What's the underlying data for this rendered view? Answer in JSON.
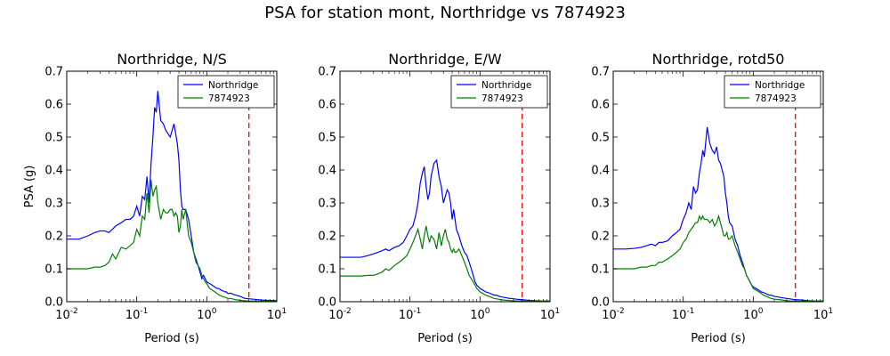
{
  "figure": {
    "title": "PSA for station mont, Northridge vs 7874923"
  },
  "colors": {
    "northridge": "#0000ff",
    "simulation": "#008000",
    "cutoff": "#ff0000"
  },
  "chart_data": [
    {
      "type": "line",
      "title": "Northridge, N/S",
      "xlabel": "Period (s)",
      "ylabel": "PSA (g)",
      "xscale": "log",
      "xlim": [
        0.01,
        10
      ],
      "ylim": [
        0,
        0.7
      ],
      "xticks": [
        "10",
        "10",
        "10",
        "10"
      ],
      "xtick_exponents": [
        "-2",
        "-1",
        "0",
        "1"
      ],
      "yticks": [
        "0.0",
        "0.1",
        "0.2",
        "0.3",
        "0.4",
        "0.5",
        "0.6",
        "0.7"
      ],
      "legend_position": "top-right",
      "cutoff_period": 4.0,
      "x": [
        0.01,
        0.015,
        0.02,
        0.025,
        0.03,
        0.035,
        0.04,
        0.045,
        0.05,
        0.06,
        0.07,
        0.08,
        0.09,
        0.1,
        0.11,
        0.12,
        0.13,
        0.14,
        0.15,
        0.16,
        0.17,
        0.18,
        0.19,
        0.2,
        0.22,
        0.24,
        0.26,
        0.28,
        0.3,
        0.32,
        0.34,
        0.36,
        0.38,
        0.4,
        0.42,
        0.44,
        0.46,
        0.5,
        0.55,
        0.6,
        0.65,
        0.7,
        0.75,
        0.8,
        0.85,
        0.9,
        0.95,
        1.0,
        1.1,
        1.2,
        1.3,
        1.4,
        1.5,
        1.6,
        1.7,
        1.8,
        1.9,
        2.0,
        2.2,
        2.4,
        2.6,
        2.8,
        3.0,
        3.5,
        4.0,
        5.0,
        6.0,
        7.5,
        10.0
      ],
      "series": [
        {
          "name": "Northridge",
          "values": [
            0.19,
            0.19,
            0.2,
            0.21,
            0.215,
            0.215,
            0.21,
            0.22,
            0.23,
            0.24,
            0.25,
            0.25,
            0.26,
            0.29,
            0.26,
            0.32,
            0.31,
            0.38,
            0.3,
            0.42,
            0.5,
            0.59,
            0.575,
            0.64,
            0.55,
            0.54,
            0.52,
            0.51,
            0.5,
            0.52,
            0.54,
            0.51,
            0.48,
            0.43,
            0.34,
            0.29,
            0.28,
            0.28,
            0.25,
            0.2,
            0.15,
            0.13,
            0.11,
            0.09,
            0.07,
            0.08,
            0.07,
            0.06,
            0.055,
            0.05,
            0.045,
            0.04,
            0.04,
            0.035,
            0.033,
            0.03,
            0.03,
            0.025,
            0.026,
            0.022,
            0.02,
            0.018,
            0.016,
            0.01,
            0.009,
            0.007,
            0.005,
            0.004,
            0.003
          ]
        },
        {
          "name": "7874923",
          "values": [
            0.1,
            0.1,
            0.1,
            0.105,
            0.105,
            0.11,
            0.12,
            0.145,
            0.13,
            0.165,
            0.16,
            0.17,
            0.18,
            0.22,
            0.2,
            0.26,
            0.25,
            0.33,
            0.27,
            0.37,
            0.32,
            0.34,
            0.35,
            0.3,
            0.25,
            0.28,
            0.27,
            0.27,
            0.28,
            0.28,
            0.26,
            0.27,
            0.26,
            0.21,
            0.23,
            0.28,
            0.25,
            0.28,
            0.2,
            0.18,
            0.15,
            0.12,
            0.11,
            0.1,
            0.08,
            0.07,
            0.06,
            0.055,
            0.04,
            0.035,
            0.03,
            0.025,
            0.02,
            0.018,
            0.015,
            0.014,
            0.012,
            0.01,
            0.01,
            0.008,
            0.006,
            0.005,
            0.004,
            0.003,
            0.002,
            0.002,
            0.001,
            0.001,
            0.001
          ]
        }
      ]
    },
    {
      "type": "line",
      "title": "Northridge, E/W",
      "xlabel": "Period (s)",
      "ylabel": "",
      "xscale": "log",
      "xlim": [
        0.01,
        10
      ],
      "ylim": [
        0,
        0.7
      ],
      "xticks": [
        "10",
        "10",
        "10",
        "10"
      ],
      "xtick_exponents": [
        "-2",
        "-1",
        "0",
        "1"
      ],
      "yticks": [
        "0.0",
        "0.1",
        "0.2",
        "0.3",
        "0.4",
        "0.5",
        "0.6",
        "0.7"
      ],
      "legend_position": "top-right",
      "cutoff_period": 4.0,
      "x": [
        0.01,
        0.015,
        0.02,
        0.025,
        0.03,
        0.035,
        0.04,
        0.045,
        0.05,
        0.06,
        0.07,
        0.08,
        0.09,
        0.1,
        0.11,
        0.12,
        0.13,
        0.14,
        0.15,
        0.16,
        0.17,
        0.18,
        0.19,
        0.2,
        0.22,
        0.24,
        0.26,
        0.28,
        0.3,
        0.32,
        0.34,
        0.36,
        0.38,
        0.4,
        0.42,
        0.44,
        0.46,
        0.5,
        0.55,
        0.6,
        0.65,
        0.7,
        0.75,
        0.8,
        0.85,
        0.9,
        0.95,
        1.0,
        1.1,
        1.2,
        1.3,
        1.4,
        1.5,
        1.6,
        1.7,
        1.8,
        1.9,
        2.0,
        2.2,
        2.4,
        2.6,
        2.8,
        3.0,
        3.5,
        4.0,
        5.0,
        6.0,
        7.5,
        10.0
      ],
      "series": [
        {
          "name": "Northridge",
          "values": [
            0.135,
            0.135,
            0.135,
            0.14,
            0.145,
            0.15,
            0.155,
            0.16,
            0.155,
            0.165,
            0.17,
            0.18,
            0.2,
            0.22,
            0.23,
            0.26,
            0.3,
            0.36,
            0.39,
            0.41,
            0.35,
            0.31,
            0.33,
            0.38,
            0.42,
            0.43,
            0.38,
            0.35,
            0.3,
            0.32,
            0.34,
            0.33,
            0.3,
            0.25,
            0.28,
            0.25,
            0.22,
            0.2,
            0.17,
            0.15,
            0.14,
            0.12,
            0.1,
            0.08,
            0.06,
            0.05,
            0.045,
            0.04,
            0.035,
            0.03,
            0.028,
            0.025,
            0.022,
            0.02,
            0.02,
            0.018,
            0.016,
            0.015,
            0.013,
            0.012,
            0.01,
            0.01,
            0.009,
            0.007,
            0.006,
            0.004,
            0.003,
            0.002,
            0.002
          ]
        },
        {
          "name": "7874923",
          "values": [
            0.078,
            0.078,
            0.078,
            0.08,
            0.08,
            0.085,
            0.09,
            0.1,
            0.095,
            0.11,
            0.12,
            0.13,
            0.14,
            0.16,
            0.18,
            0.2,
            0.22,
            0.19,
            0.16,
            0.2,
            0.23,
            0.2,
            0.18,
            0.2,
            0.19,
            0.16,
            0.21,
            0.17,
            0.2,
            0.22,
            0.19,
            0.18,
            0.16,
            0.15,
            0.16,
            0.15,
            0.15,
            0.16,
            0.14,
            0.12,
            0.1,
            0.08,
            0.07,
            0.06,
            0.05,
            0.04,
            0.035,
            0.03,
            0.025,
            0.02,
            0.017,
            0.015,
            0.012,
            0.01,
            0.009,
            0.008,
            0.007,
            0.006,
            0.005,
            0.004,
            0.004,
            0.003,
            0.003,
            0.002,
            0.002,
            0.001,
            0.001,
            0.001,
            0.001
          ]
        }
      ]
    },
    {
      "type": "line",
      "title": "Northridge, rotd50",
      "xlabel": "Period (s)",
      "ylabel": "",
      "xscale": "log",
      "xlim": [
        0.01,
        10
      ],
      "ylim": [
        0,
        0.7
      ],
      "xticks": [
        "10",
        "10",
        "10",
        "10"
      ],
      "xtick_exponents": [
        "-2",
        "-1",
        "0",
        "1"
      ],
      "yticks": [
        "0.0",
        "0.1",
        "0.2",
        "0.3",
        "0.4",
        "0.5",
        "0.6",
        "0.7"
      ],
      "legend_position": "top-right",
      "cutoff_period": 4.0,
      "x": [
        0.01,
        0.015,
        0.02,
        0.025,
        0.03,
        0.035,
        0.04,
        0.045,
        0.05,
        0.06,
        0.07,
        0.08,
        0.09,
        0.1,
        0.11,
        0.12,
        0.13,
        0.14,
        0.15,
        0.16,
        0.17,
        0.18,
        0.19,
        0.2,
        0.22,
        0.24,
        0.26,
        0.28,
        0.3,
        0.32,
        0.34,
        0.36,
        0.38,
        0.4,
        0.42,
        0.44,
        0.46,
        0.5,
        0.55,
        0.6,
        0.65,
        0.7,
        0.75,
        0.8,
        0.85,
        0.9,
        0.95,
        1.0,
        1.1,
        1.2,
        1.3,
        1.4,
        1.5,
        1.6,
        1.7,
        1.8,
        1.9,
        2.0,
        2.2,
        2.4,
        2.6,
        2.8,
        3.0,
        3.5,
        4.0,
        5.0,
        6.0,
        7.5,
        10.0
      ],
      "series": [
        {
          "name": "Northridge",
          "values": [
            0.16,
            0.16,
            0.162,
            0.165,
            0.17,
            0.175,
            0.17,
            0.18,
            0.18,
            0.185,
            0.2,
            0.21,
            0.22,
            0.25,
            0.27,
            0.3,
            0.28,
            0.35,
            0.33,
            0.34,
            0.39,
            0.42,
            0.46,
            0.44,
            0.53,
            0.48,
            0.46,
            0.45,
            0.47,
            0.43,
            0.42,
            0.4,
            0.38,
            0.33,
            0.3,
            0.26,
            0.24,
            0.23,
            0.19,
            0.17,
            0.14,
            0.12,
            0.1,
            0.08,
            0.07,
            0.06,
            0.05,
            0.045,
            0.04,
            0.035,
            0.03,
            0.028,
            0.025,
            0.022,
            0.02,
            0.02,
            0.018,
            0.016,
            0.015,
            0.013,
            0.012,
            0.011,
            0.01,
            0.008,
            0.006,
            0.005,
            0.003,
            0.002,
            0.002
          ]
        },
        {
          "name": "7874923",
          "values": [
            0.1,
            0.1,
            0.1,
            0.105,
            0.105,
            0.11,
            0.11,
            0.12,
            0.12,
            0.13,
            0.14,
            0.15,
            0.16,
            0.18,
            0.19,
            0.21,
            0.22,
            0.23,
            0.24,
            0.24,
            0.26,
            0.25,
            0.26,
            0.25,
            0.25,
            0.24,
            0.25,
            0.23,
            0.24,
            0.26,
            0.24,
            0.22,
            0.2,
            0.2,
            0.21,
            0.19,
            0.19,
            0.2,
            0.17,
            0.15,
            0.13,
            0.11,
            0.1,
            0.08,
            0.07,
            0.06,
            0.05,
            0.04,
            0.035,
            0.03,
            0.025,
            0.02,
            0.017,
            0.015,
            0.012,
            0.01,
            0.009,
            0.008,
            0.007,
            0.006,
            0.005,
            0.004,
            0.003,
            0.002,
            0.002,
            0.001,
            0.001,
            0.001,
            0.001
          ]
        }
      ]
    }
  ]
}
